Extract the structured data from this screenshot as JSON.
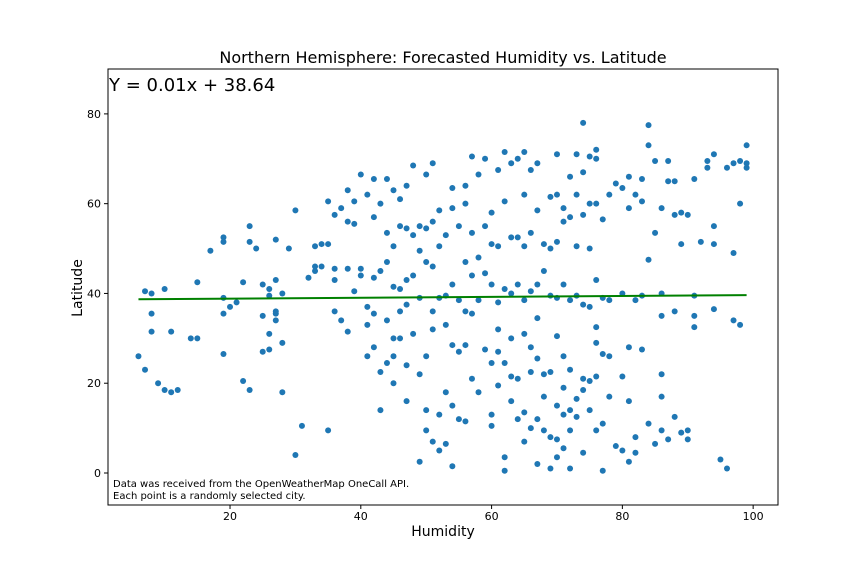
{
  "chart_data": {
    "type": "scatter",
    "title": "Northern Hemisphere: Forecasted Humidity vs. Latitude",
    "xlabel": "Humidity",
    "ylabel": "Latitude",
    "annotation": "Y = 0.01x + 38.64",
    "note": [
      "Data was received from the OpenWeatherMap OneCall API.",
      "Each point is a randomly selected city."
    ],
    "xlim": [
      1.34,
      103.8
    ],
    "ylim": [
      -7.13,
      90
    ],
    "xticks": [
      20,
      40,
      60,
      80,
      100
    ],
    "yticks": [
      0,
      20,
      40,
      60,
      80
    ],
    "color": "#1f77b4",
    "x": [
      6,
      7,
      7,
      8,
      8,
      8,
      9,
      10,
      10,
      11,
      11,
      12,
      14,
      15,
      15,
      17,
      19,
      19,
      19,
      19,
      19,
      20,
      21,
      22,
      22,
      23,
      23,
      23,
      24,
      25,
      25,
      25,
      26,
      26,
      26,
      26,
      27,
      27,
      27,
      27,
      27,
      28,
      28,
      28,
      29,
      30,
      30,
      31,
      32,
      33,
      33,
      33,
      34,
      34,
      35,
      35,
      35,
      36,
      36,
      36,
      36,
      37,
      37,
      38,
      38,
      38,
      38,
      39,
      39,
      39,
      40,
      40,
      40,
      41,
      41,
      41,
      41,
      42,
      42,
      42,
      42,
      42,
      43,
      43,
      43,
      43,
      44,
      44,
      44,
      44,
      44,
      45,
      45,
      45,
      45,
      45,
      45,
      46,
      46,
      46,
      46,
      46,
      47,
      47,
      47,
      47,
      47,
      47,
      48,
      48,
      48,
      48,
      49,
      49,
      49,
      49,
      49,
      50,
      50,
      50,
      50,
      50,
      50,
      51,
      51,
      51,
      51,
      51,
      51,
      52,
      52,
      52,
      52,
      52,
      53,
      53,
      53,
      53,
      53,
      54,
      54,
      54,
      54,
      54,
      54,
      55,
      55,
      55,
      55,
      56,
      56,
      56,
      56,
      56,
      56,
      57,
      57,
      57,
      57,
      57,
      58,
      58,
      58,
      58,
      59,
      59,
      59,
      59,
      60,
      60,
      60,
      60,
      60,
      60,
      61,
      61,
      61,
      61,
      61,
      61,
      62,
      62,
      62,
      62,
      62,
      62,
      63,
      63,
      63,
      63,
      63,
      63,
      64,
      64,
      64,
      64,
      64,
      65,
      65,
      65,
      65,
      65,
      65,
      65,
      66,
      66,
      66,
      66,
      66,
      66,
      67,
      67,
      67,
      67,
      67,
      67,
      67,
      68,
      68,
      68,
      68,
      68,
      69,
      69,
      69,
      69,
      69,
      69,
      70,
      70,
      70,
      70,
      70,
      70,
      70,
      70,
      71,
      71,
      71,
      71,
      71,
      71,
      71,
      72,
      72,
      72,
      72,
      72,
      72,
      72,
      73,
      73,
      73,
      73,
      73,
      73,
      74,
      74,
      74,
      74,
      74,
      74,
      74,
      75,
      75,
      75,
      75,
      75,
      75,
      76,
      76,
      76,
      76,
      76,
      76,
      76,
      76,
      77,
      77,
      77,
      77,
      77,
      78,
      78,
      78,
      78,
      79,
      79,
      80,
      80,
      80,
      80,
      81,
      81,
      81,
      81,
      81,
      82,
      82,
      82,
      82,
      83,
      83,
      83,
      83,
      84,
      84,
      84,
      84,
      85,
      85,
      85,
      86,
      86,
      86,
      86,
      86,
      86,
      87,
      87,
      87,
      88,
      88,
      88,
      88,
      89,
      89,
      89,
      90,
      90,
      90,
      91,
      91,
      91,
      91,
      92,
      93,
      93,
      94,
      94,
      94,
      94,
      95,
      96,
      96,
      97,
      97,
      97,
      98,
      98,
      98,
      99,
      99,
      99
    ],
    "values": [
      26,
      23,
      40.5,
      40,
      35.5,
      31.5,
      20,
      18.5,
      41,
      18,
      31.5,
      18.5,
      30,
      30,
      42.5,
      49.5,
      52.5,
      51.5,
      35.5,
      26.5,
      39,
      37,
      38,
      20.5,
      42.5,
      55,
      51.5,
      18.5,
      50,
      35,
      27,
      42,
      41,
      39.5,
      31,
      27.5,
      52,
      36,
      35.5,
      34,
      43,
      40,
      29,
      18,
      50,
      58.5,
      4,
      10.5,
      43.5,
      50.5,
      46,
      45,
      51,
      46,
      60.5,
      51,
      9.5,
      57.5,
      45.5,
      43,
      36,
      34,
      59,
      63,
      56,
      45.5,
      31.5,
      60.5,
      55.5,
      40.5,
      66.5,
      45.5,
      44,
      62,
      37,
      33,
      26,
      65.5,
      57,
      43.5,
      35.5,
      28,
      60,
      45,
      22.5,
      14,
      65.5,
      47,
      53.5,
      34,
      24.5,
      63,
      50.5,
      41.5,
      30,
      26,
      20,
      61,
      55,
      41,
      36,
      30,
      64,
      54.5,
      43,
      37.5,
      16,
      24,
      68.5,
      53,
      44,
      31,
      55,
      49.5,
      39,
      22,
      2.5,
      66.5,
      54.5,
      47,
      26,
      14,
      9.5,
      69,
      56,
      46,
      36,
      32,
      7,
      58.5,
      50.5,
      39,
      13,
      5,
      53,
      39.5,
      33,
      18,
      6.5,
      63.5,
      59,
      42,
      28.5,
      15,
      1.5,
      55,
      38.5,
      27,
      12,
      64,
      60,
      47,
      36,
      28.5,
      11.5,
      70.5,
      53.5,
      44,
      35.5,
      21,
      66.5,
      48,
      38.5,
      18,
      70,
      55,
      44.5,
      27.5,
      58,
      51,
      42,
      24.5,
      13,
      10.5,
      67.5,
      50.5,
      38,
      32,
      27,
      19.5,
      71.5,
      60.5,
      41,
      24.5,
      3.5,
      0.5,
      69,
      52.5,
      40,
      30,
      21.5,
      16,
      70,
      52.5,
      42,
      21,
      12,
      71.5,
      62,
      50.5,
      38.5,
      31,
      13.5,
      7,
      67.5,
      53.5,
      40.5,
      28,
      22.5,
      10,
      69,
      58.5,
      42,
      34.5,
      25.5,
      12,
      2,
      51,
      45,
      22,
      17,
      9.5,
      61.5,
      50,
      39.5,
      22.5,
      8,
      1,
      71,
      62,
      51.5,
      39,
      30.5,
      15,
      7.5,
      3.5,
      59,
      56,
      42,
      26,
      19,
      13,
      5.5,
      66,
      57,
      38.5,
      23,
      14,
      9.5,
      1,
      71,
      62,
      50.5,
      39.5,
      16.5,
      12.5,
      78,
      67,
      57.5,
      37.5,
      21,
      18.5,
      4.5,
      70.5,
      60,
      50,
      37,
      20.5,
      14,
      72,
      70,
      60,
      43,
      32.5,
      29,
      21.5,
      9.5,
      56.5,
      39,
      26.5,
      11,
      0.5,
      62,
      38.5,
      26,
      17,
      64.5,
      6,
      63.5,
      40,
      21.5,
      5,
      66,
      59,
      28,
      16,
      2.5,
      62,
      38.5,
      8,
      4.5,
      65.5,
      60.5,
      39.5,
      27.5,
      77.5,
      73,
      47.5,
      11,
      69.5,
      53.5,
      6.5,
      59,
      40,
      35,
      22,
      17,
      9.5,
      69.5,
      65,
      7.5,
      65,
      57.5,
      36,
      12.5,
      58,
      51,
      9,
      57.5,
      9.5,
      7.5,
      65.5,
      39.5,
      35,
      32.5,
      51.5,
      69.5,
      68,
      71,
      55,
      36.5,
      51,
      3,
      68,
      1,
      69,
      49,
      34,
      69.5,
      60,
      33,
      73,
      69,
      68
    ],
    "fit": {
      "x": [
        6,
        99
      ],
      "values": [
        38.7,
        39.63
      ],
      "color": "#008000"
    }
  }
}
